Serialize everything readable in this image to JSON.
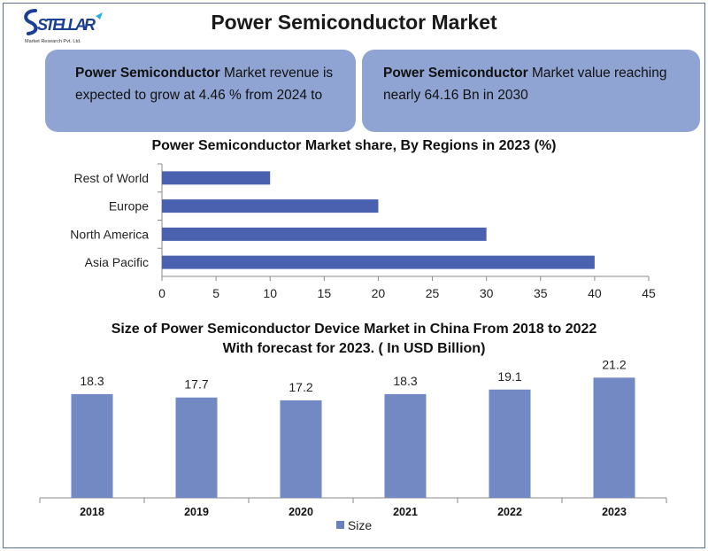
{
  "header": {
    "logo_text": "STELLAR",
    "logo_subtext": "Market Research Pvt. Ltd.",
    "title": "Power Semiconductor Market"
  },
  "info_boxes": [
    {
      "bold": "Power Semiconductor",
      "text": " Market revenue is expected to grow at 4.46 % from 2024 to"
    },
    {
      "bold": "Power Semiconductor",
      "text": " Market value reaching nearly 64.16 Bn in 2030"
    }
  ],
  "colors": {
    "bar": "#4a61b0",
    "column": "#7389c4",
    "box": "#8fa4d2"
  },
  "chart_data": [
    {
      "type": "bar",
      "orientation": "horizontal",
      "title": "Power Semiconductor Market share,  By Regions in 2023  (%)",
      "categories": [
        "Rest of World",
        "Europe",
        "North America",
        "Asia Pacific"
      ],
      "values": [
        10,
        20,
        30,
        40
      ],
      "xlim": [
        0,
        45
      ],
      "ticks": [
        0,
        5,
        10,
        15,
        20,
        25,
        30,
        35,
        40,
        45
      ],
      "grid": false
    },
    {
      "type": "bar",
      "title_lines": [
        "Size of Power Semiconductor Device Market in China From 2018 to 2022",
        "With forecast for 2023. ( In USD Billion)"
      ],
      "categories": [
        "2018",
        "2019",
        "2020",
        "2021",
        "2022",
        "2023"
      ],
      "series": [
        {
          "name": "Size",
          "values": [
            18.3,
            17.7,
            17.2,
            18.3,
            19.1,
            21.2
          ]
        }
      ],
      "data_labels": [
        "18.3",
        "17.7",
        "17.2",
        "18.3",
        "19.1",
        "21.2"
      ],
      "legend": "bottom",
      "grid": false
    }
  ]
}
